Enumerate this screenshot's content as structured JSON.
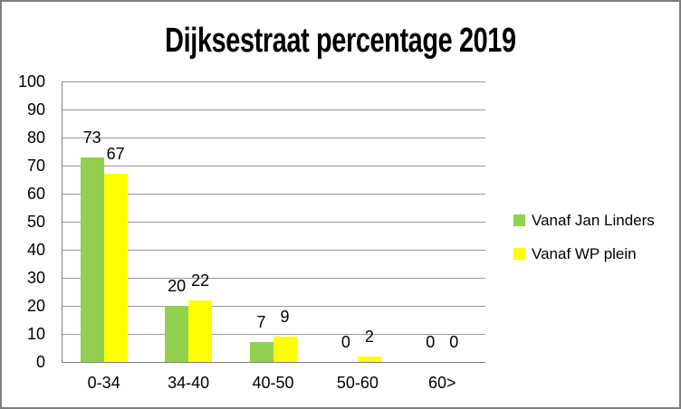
{
  "chart_data": {
    "type": "bar",
    "title": "Dijksestraat percentage 2019",
    "categories": [
      "0-34",
      "34-40",
      "40-50",
      "50-60",
      "60>"
    ],
    "series": [
      {
        "name": "Vanaf Jan Linders",
        "color": "#92D050",
        "values": [
          73,
          20,
          7,
          0,
          0
        ]
      },
      {
        "name": "Vanaf WP plein",
        "color": "#FFFF00",
        "values": [
          67,
          22,
          9,
          2,
          0
        ]
      }
    ],
    "ylim": [
      0,
      100
    ],
    "yticks": [
      100,
      90,
      80,
      70,
      60,
      50,
      40,
      30,
      20,
      10,
      0
    ],
    "grid": "horizontal",
    "legend_position": "right",
    "data_labels": "outside-end",
    "colors": {
      "gridline": "#999999",
      "axis": "#808080",
      "frame_border": "#7F7F7F",
      "text": "#000000"
    }
  }
}
